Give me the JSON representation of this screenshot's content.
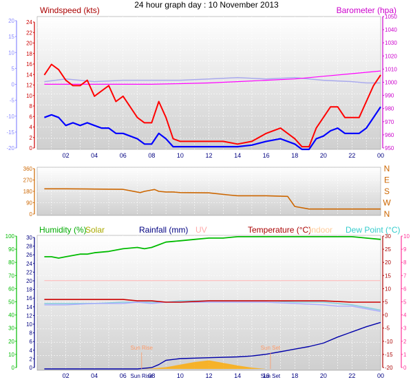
{
  "title": "24 hour graph day : 10 November 2013",
  "chart_data": [
    {
      "type": "line",
      "label_left": "Windspeed (kts)",
      "label_right": "Barometer (hpa)",
      "x_ticks": [
        "02",
        "04",
        "06",
        "08",
        "10",
        "12",
        "14",
        "16",
        "18",
        "20",
        "22",
        "00"
      ],
      "y_left_ticks": [
        "0",
        "2",
        "4",
        "6",
        "8",
        "10",
        "12",
        "14",
        "16",
        "18",
        "20",
        "22",
        "24"
      ],
      "y_left_range": [
        0,
        25
      ],
      "y_outer_ticks": [
        "-20",
        "-15",
        "-10",
        "-5",
        "0",
        "5",
        "10",
        "15",
        "20"
      ],
      "y_outer_range": [
        -20,
        20
      ],
      "y_right_ticks": [
        "950",
        "960",
        "970",
        "980",
        "990",
        "1000",
        "1010",
        "1020",
        "1030",
        "1040",
        "1050"
      ],
      "y_right_range": [
        950,
        1050
      ],
      "series": [
        {
          "color": "#ff0000",
          "x": [
            0.5,
            1,
            1.5,
            2,
            2.5,
            3,
            3.5,
            4,
            4.5,
            5,
            5.5,
            6,
            6.5,
            7,
            7.5,
            8,
            8.5,
            9,
            9.5,
            10,
            11,
            12,
            13,
            14,
            15,
            16,
            17,
            18,
            18.5,
            19,
            19.5,
            20,
            20.5,
            21,
            21.5,
            22,
            22.5,
            23,
            23.5,
            24
          ],
          "values": [
            14,
            16,
            15,
            13,
            12,
            12,
            13,
            10,
            11,
            12,
            9,
            10,
            8,
            6,
            5,
            5,
            9,
            6,
            2,
            1.5,
            1.5,
            1.5,
            1.5,
            1,
            1.5,
            3,
            4,
            2,
            0.5,
            0.5,
            4,
            6,
            8,
            8,
            6,
            6,
            6,
            9,
            12,
            14
          ]
        },
        {
          "color": "#0000ff",
          "x": [
            0.5,
            1,
            1.5,
            2,
            2.5,
            3,
            3.5,
            4,
            4.5,
            5,
            5.5,
            6,
            6.5,
            7,
            7.5,
            8,
            8.5,
            9,
            9.5,
            10,
            11,
            12,
            13,
            14,
            15,
            16,
            17,
            18,
            18.5,
            19,
            19.5,
            20,
            20.5,
            21,
            21.5,
            22,
            22.5,
            23,
            23.5,
            24
          ],
          "values": [
            6,
            6.5,
            6,
            4.5,
            5,
            4.5,
            5,
            4.5,
            4,
            4,
            3,
            3,
            2.5,
            2,
            1,
            1,
            3,
            2,
            0.5,
            0.5,
            0.5,
            0.5,
            0.5,
            0.5,
            0.8,
            1.5,
            2,
            1,
            0,
            0,
            2,
            2.5,
            3.5,
            4,
            3,
            3,
            3,
            4,
            6,
            8
          ]
        },
        {
          "color": "#aaaaee",
          "x": [
            0.5,
            2,
            4,
            6,
            8,
            10,
            12,
            14,
            16,
            18,
            20,
            22,
            23,
            24
          ],
          "values": [
            1001,
            1003,
            1001,
            1002,
            1002,
            1002,
            1003,
            1004,
            1003,
            1004,
            1002,
            1001,
            1000,
            1000
          ]
        },
        {
          "color": "#ff00ff",
          "x": [
            0.5,
            2,
            4,
            6,
            8,
            10,
            12,
            14,
            16,
            18,
            20,
            22,
            24
          ],
          "values": [
            999,
            999,
            999,
            999,
            999,
            999.5,
            1000,
            1001,
            1002,
            1003,
            1005,
            1007,
            1009
          ]
        }
      ]
    },
    {
      "type": "line",
      "y_ticks": [
        "0",
        "90",
        "180",
        "270",
        "360"
      ],
      "y_range": [
        0,
        360
      ],
      "y_right_ticks": [
        "N",
        "W",
        "S",
        "E",
        "N"
      ],
      "series": [
        {
          "color": "#cc6600",
          "x": [
            0.5,
            2,
            4,
            6,
            7.2,
            7.5,
            8.2,
            8.5,
            9,
            9.5,
            10,
            12,
            13.5,
            14,
            16,
            17.5,
            18,
            19,
            20,
            21,
            22,
            23,
            24
          ],
          "values": [
            200,
            200,
            198,
            196,
            170,
            180,
            195,
            180,
            175,
            175,
            170,
            168,
            150,
            145,
            145,
            140,
            60,
            40,
            40,
            40,
            40,
            40,
            40
          ]
        }
      ]
    },
    {
      "type": "line",
      "labels": [
        "Humidity (%)",
        "Solar",
        "Rainfall (mm)",
        "UV",
        "Temperature (°C)",
        "Indoor",
        "Dew Point (°C)"
      ],
      "label_colors": [
        "#00aa00",
        "#aaaa00",
        "#000080",
        "#ffaaaa",
        "#aa0000",
        "#ffcc99",
        "#33cccc"
      ],
      "y_humidity_ticks": [
        "0",
        "10",
        "20",
        "30",
        "40",
        "50",
        "60",
        "70",
        "80",
        "90",
        "100"
      ],
      "y_rain_ticks": [
        "0",
        "2",
        "4",
        "6",
        "8",
        "10",
        "12",
        "14",
        "16",
        "18",
        "20",
        "22",
        "24",
        "26",
        "28",
        "30"
      ],
      "y_rain_range": [
        0,
        31
      ],
      "y_temp_ticks": [
        "-20",
        "-15",
        "-10",
        "-5",
        "0",
        "5",
        "10",
        "15",
        "20",
        "25",
        "30"
      ],
      "y_temp_range": [
        -20,
        30
      ],
      "y_outer_right_ticks": [
        "0",
        "1",
        "2",
        "3",
        "4",
        "5",
        "6",
        "7",
        "8",
        "9",
        "10"
      ],
      "sun_rise": "Sun Rise",
      "sun_set": "Sun Set",
      "sun_rise_x": 7.3,
      "sun_set_x": 16.3,
      "x_labels_extra": [
        "Sun Rise",
        "Sun Set"
      ],
      "series": [
        {
          "color": "#00bb00",
          "x": [
            0.5,
            1,
            1.5,
            2,
            2.5,
            3,
            3.5,
            4,
            5,
            6,
            7,
            7.5,
            8,
            8.5,
            9,
            10,
            11,
            12,
            13,
            14,
            15,
            16,
            17,
            18,
            19,
            20,
            21,
            22,
            23,
            24
          ],
          "values": [
            84,
            84,
            83,
            84,
            85,
            86,
            86,
            87,
            88,
            90,
            91,
            90,
            91,
            93,
            95,
            96,
            97,
            98,
            98,
            99,
            99,
            99,
            99,
            99,
            99,
            99,
            99,
            99,
            98,
            97
          ]
        },
        {
          "color": "#cc0000",
          "x": [
            0.5,
            2,
            4,
            6,
            7,
            8,
            9,
            10,
            12,
            14,
            16,
            18,
            20,
            22,
            24
          ],
          "values": [
            6,
            6,
            6,
            6,
            5.5,
            5.5,
            5,
            5,
            5.5,
            5.5,
            5.5,
            5.5,
            5.5,
            5,
            5
          ]
        },
        {
          "color": "#88ccdd",
          "x": [
            0.5,
            2,
            4,
            6,
            7,
            8,
            9,
            10,
            12,
            14,
            16,
            18,
            20,
            21,
            22,
            23,
            24
          ],
          "values": [
            4.5,
            4.5,
            4.5,
            5,
            5,
            5,
            5,
            5.5,
            5.5,
            5.5,
            5.5,
            5,
            5,
            4.5,
            4,
            3,
            2
          ]
        },
        {
          "color": "#aaaaff",
          "x": [
            0.5,
            2,
            4,
            6,
            7,
            8,
            9,
            10,
            12,
            14,
            16,
            18,
            20,
            21,
            22,
            23,
            24
          ],
          "values": [
            4,
            4,
            4.5,
            4.5,
            5,
            4.5,
            5,
            5,
            5,
            5,
            5,
            4.5,
            4,
            3.5,
            3.5,
            2.5,
            1.5
          ]
        },
        {
          "color": "#ffbbbb",
          "x": [
            0.5,
            24
          ],
          "values": [
            20.5,
            20.5
          ]
        },
        {
          "color": "#0000aa",
          "x": [
            0.5,
            7,
            8,
            8.5,
            9,
            10,
            12,
            14,
            15,
            16,
            17,
            18,
            19,
            20,
            21,
            22,
            23,
            24
          ],
          "values": [
            0,
            0,
            0.3,
            1,
            2,
            2.4,
            2.6,
            2.8,
            3,
            3.4,
            4,
            4.6,
            5.2,
            6,
            7.4,
            8.6,
            9.8,
            10.8
          ]
        },
        {
          "color": "#ffaa00",
          "x": [
            7,
            8,
            9,
            10,
            11,
            12,
            13,
            14,
            15,
            16
          ],
          "values": [
            0,
            0.1,
            0.4,
            1,
            1.6,
            2,
            1.4,
            0.8,
            0.3,
            0
          ]
        }
      ]
    }
  ]
}
